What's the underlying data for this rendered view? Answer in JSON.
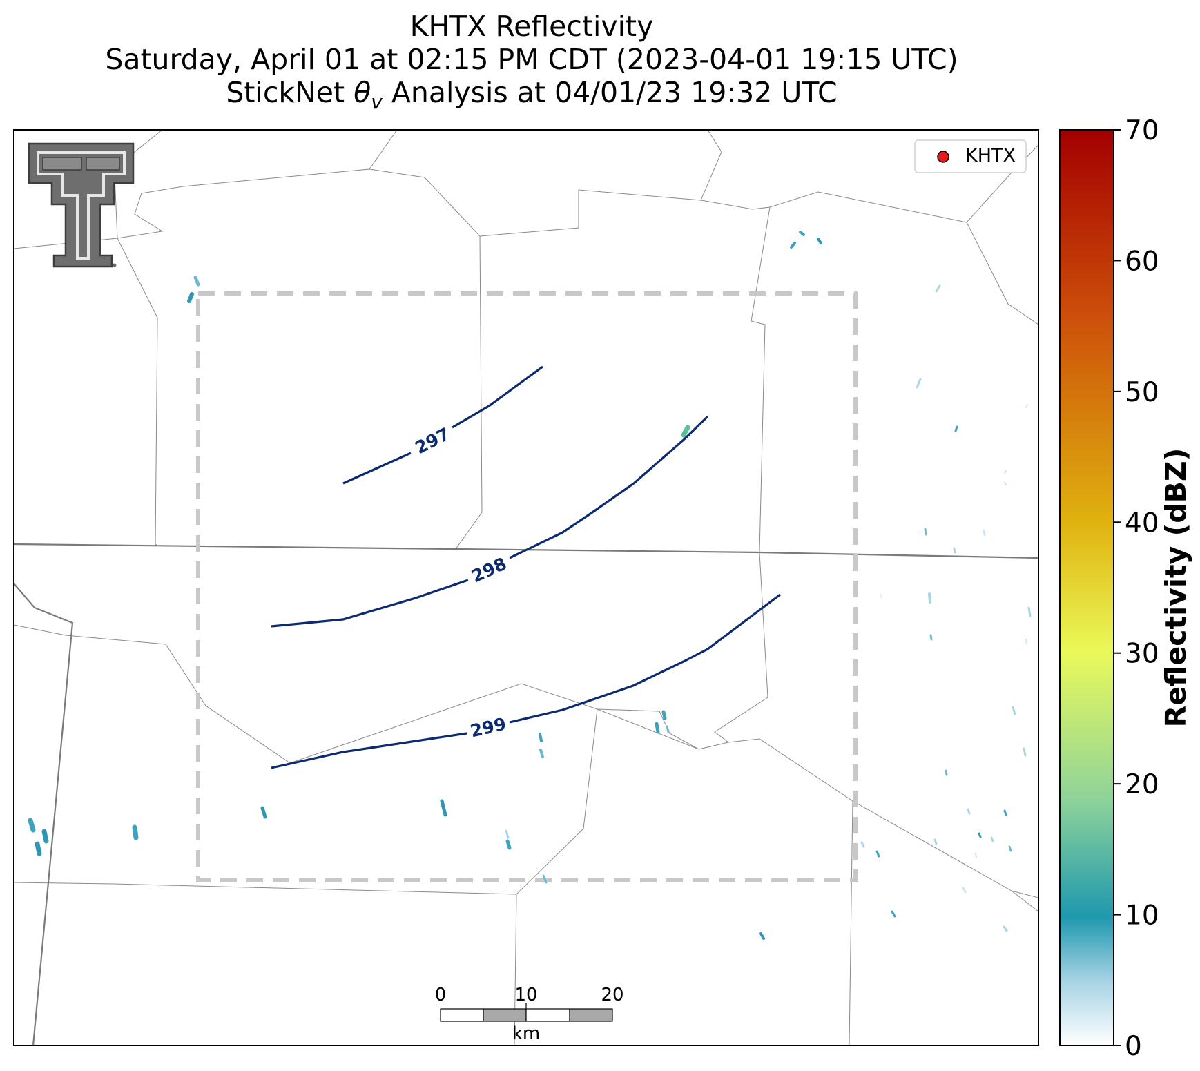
{
  "title": {
    "line1": "KHTX Reflectivity",
    "line2": "Saturday, April 01 at 02:15 PM CDT (2023-04-01 19:15 UTC)",
    "line3_prefix": "StickNet ",
    "line3_symbol": "θ",
    "line3_subscript": "v",
    "line3_suffix": " Analysis at 04/01/23 19:32 UTC"
  },
  "legend": {
    "label": "KHTX",
    "marker_color": "#e41a1c"
  },
  "colorbar": {
    "label": "Reflectivity (dBZ)",
    "ticks": [
      "0",
      "10",
      "20",
      "30",
      "40",
      "50",
      "60",
      "70"
    ],
    "range": [
      0,
      70
    ],
    "colors": [
      "#ffffff",
      "#a7d3e4",
      "#1f98ae",
      "#8fd39a",
      "#eaf95a",
      "#e0b30f",
      "#cc4d0a",
      "#a30000"
    ]
  },
  "contours": [
    {
      "level": "297",
      "color": "#0b2a6f"
    },
    {
      "level": "298",
      "color": "#0b2a6f"
    },
    {
      "level": "299",
      "color": "#0b2a6f"
    }
  ],
  "scale_bar": {
    "ticks": [
      "0",
      "10",
      "20"
    ],
    "unit": "km"
  },
  "logo": {
    "name": "Texas Tech Double T",
    "color": "#666666"
  },
  "analysis_box": {
    "style": "dashed",
    "color": "#c8c8c8"
  }
}
